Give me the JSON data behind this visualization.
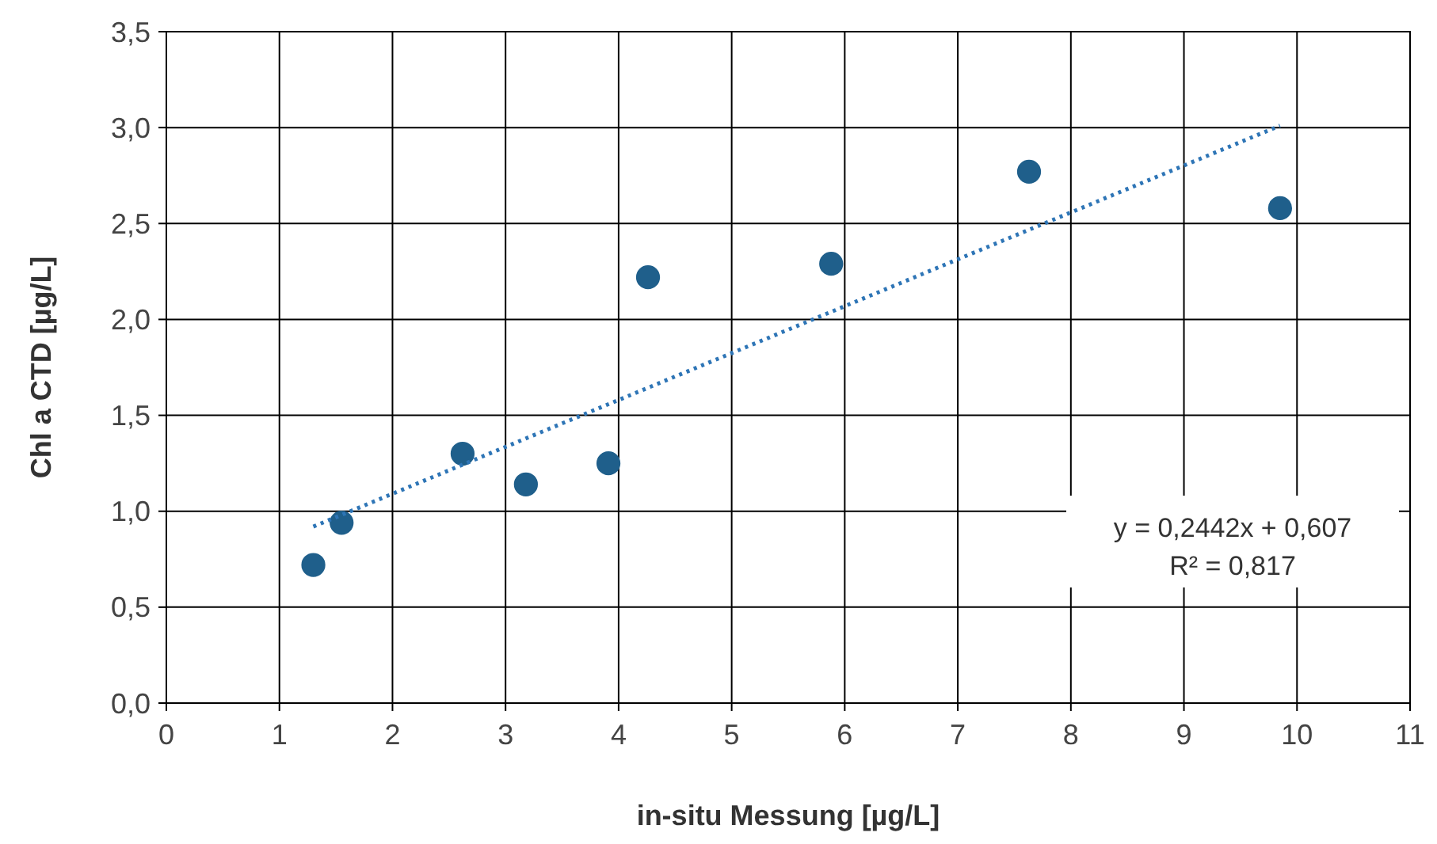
{
  "chart_data": {
    "type": "scatter",
    "xlabel": "in-situ Messung [µg/L]",
    "ylabel": "Chl a CTD [µg/L]",
    "x": [
      1.3,
      1.55,
      2.62,
      3.18,
      3.91,
      4.26,
      5.88,
      7.63,
      9.85
    ],
    "series": [
      {
        "color": "#1f5f8b",
        "marker": "circle",
        "values": [
          0.72,
          0.94,
          1.3,
          1.14,
          1.25,
          2.22,
          2.29,
          2.77,
          2.58
        ]
      },
      {
        "type": "line",
        "color": "#2e75b6",
        "line_style": "dotted",
        "marker": "none",
        "x": [
          1.3,
          9.85
        ],
        "values": [
          0.92,
          3.01
        ]
      }
    ],
    "xlim": [
      0,
      11
    ],
    "xticks": [
      0,
      1,
      2,
      3,
      4,
      5,
      6,
      7,
      8,
      9,
      10,
      11
    ],
    "ylim": [
      0,
      3.5
    ],
    "yticks": [
      {
        "value": 0,
        "label": "0,0"
      },
      {
        "value": 0.5,
        "label": "0,5"
      },
      {
        "value": 1,
        "label": "1,0"
      },
      {
        "value": 1.5,
        "label": "1,5"
      },
      {
        "value": 2,
        "label": "2,0"
      },
      {
        "value": 2.5,
        "label": "2,5"
      },
      {
        "value": 3,
        "label": "3,0"
      },
      {
        "value": 3.5,
        "label": "3,5"
      }
    ],
    "grid": true,
    "annotations": [
      "y = 0,2442x + 0,607",
      "R² = 0,817"
    ]
  }
}
